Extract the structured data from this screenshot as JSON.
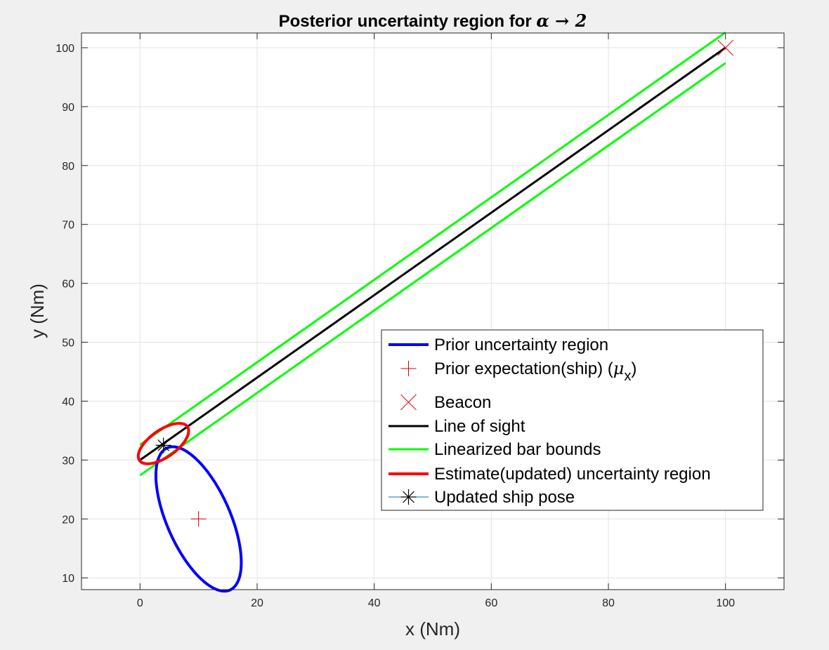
{
  "chart_data": {
    "type": "line",
    "title_prefix": "Posterior uncertainty region for ",
    "title_symbol": "α → 2",
    "xlabel": "x (Nm)",
    "ylabel": "y (Nm)",
    "xlim": [
      -10,
      110
    ],
    "ylim": [
      8,
      102.5
    ],
    "xticks": [
      0,
      20,
      40,
      60,
      80,
      100
    ],
    "yticks": [
      10,
      20,
      30,
      40,
      50,
      60,
      70,
      80,
      90,
      100
    ],
    "grid": true,
    "legend_position": "center-right",
    "series": [
      {
        "name": "Prior uncertainty region",
        "kind": "ellipse",
        "color": "#0000ff",
        "center": [
          10,
          20
        ],
        "semi_axis_major": 13.2,
        "semi_axis_minor": 5.4,
        "major_axis_angle_deg": 114
      },
      {
        "name": "Prior expectation(ship) (μx)",
        "legend_base": "Prior expectation(ship) (",
        "legend_mu": "μ",
        "legend_sub": "x",
        "legend_close": ")",
        "kind": "marker",
        "marker": "plus",
        "color": "#cc0000",
        "points": [
          [
            10,
            20
          ]
        ]
      },
      {
        "name": "Beacon",
        "kind": "marker",
        "marker": "x",
        "color": "#ff0000",
        "points": [
          [
            100,
            100
          ]
        ]
      },
      {
        "name": "Line of sight",
        "kind": "line",
        "color": "#000000",
        "points": [
          [
            0,
            30
          ],
          [
            100,
            100
          ]
        ]
      },
      {
        "name": "Linearized bar bounds",
        "kind": "line_pair",
        "color": "#00ff00",
        "lines": [
          [
            [
              0,
              32.6
            ],
            [
              100,
              102.6
            ]
          ],
          [
            [
              0,
              27.4
            ],
            [
              100,
              97.4
            ]
          ]
        ]
      },
      {
        "name": "Estimate(updated) uncertainty region",
        "kind": "ellipse",
        "color": "#ff0000",
        "center": [
          4,
          32.8
        ],
        "semi_axis_major": 5.0,
        "semi_axis_minor": 2.3,
        "major_axis_angle_deg": 35
      },
      {
        "name": "Updated ship pose",
        "kind": "marker",
        "marker": "asterisk",
        "color": "#000000",
        "legend_line_color": "#0072bd",
        "points": [
          [
            4,
            32.5
          ]
        ]
      }
    ]
  }
}
